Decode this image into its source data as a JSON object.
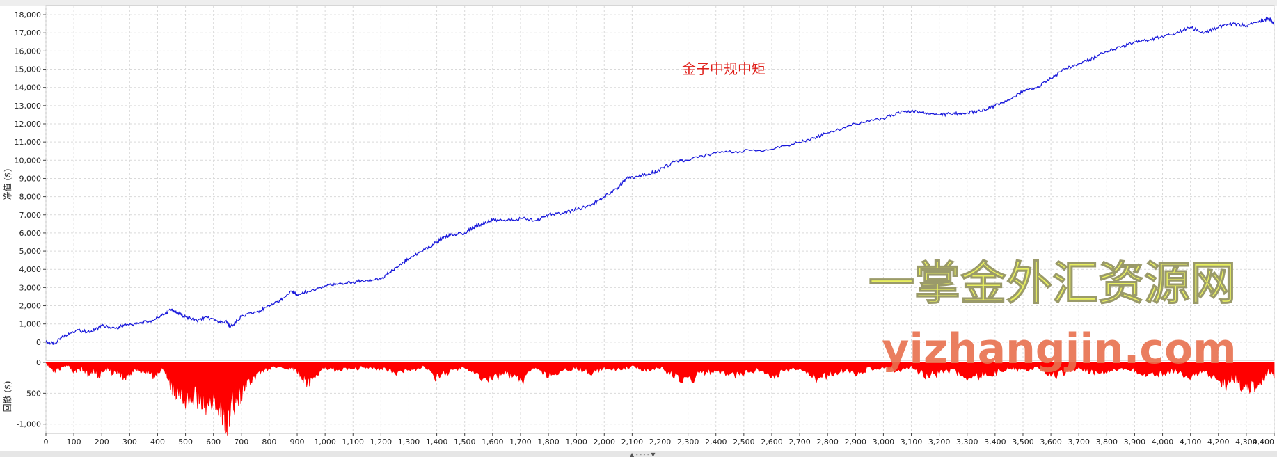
{
  "chart_data": [
    {
      "type": "line",
      "title": "金子中规中矩",
      "ylabel": "净值 ($)",
      "xlim": [
        0,
        4400
      ],
      "ylim": [
        -1000,
        18500
      ],
      "y_ticks": [
        0,
        1000,
        2000,
        3000,
        4000,
        5000,
        6000,
        7000,
        8000,
        9000,
        10000,
        11000,
        12000,
        13000,
        14000,
        15000,
        16000,
        17000,
        18000
      ],
      "y_tick_labels": [
        "0",
        "1,000",
        "2,000",
        "3,000",
        "4,000",
        "5,000",
        "6,000",
        "7,000",
        "8,000",
        "9,000",
        "10,000",
        "11,000",
        "12,000",
        "13,000",
        "14,000",
        "15,000",
        "16,000",
        "17,000",
        "18,000"
      ],
      "grid": true,
      "color": "#1a1adb",
      "series": [
        {
          "x": [
            0,
            30,
            70,
            110,
            160,
            200,
            250,
            280,
            330,
            380,
            420,
            450,
            470,
            500,
            540,
            580,
            620,
            650,
            660,
            700,
            760,
            800,
            840,
            880,
            900,
            940,
            1000,
            1050,
            1100,
            1150,
            1200,
            1230,
            1270,
            1300,
            1350,
            1400,
            1430,
            1450,
            1500,
            1530,
            1560,
            1600,
            1650,
            1700,
            1760,
            1800,
            1850,
            1900,
            1950,
            2000,
            2050,
            2080,
            2120,
            2170,
            2200,
            2250,
            2300,
            2400,
            2500,
            2600,
            2700,
            2750,
            2800,
            2900,
            3000,
            3050,
            3100,
            3150,
            3200,
            3250,
            3300,
            3350,
            3400,
            3450,
            3500,
            3550,
            3600,
            3650,
            3700,
            3750,
            3800,
            3850,
            3900,
            3950,
            4000,
            4050,
            4100,
            4150,
            4200,
            4250,
            4300,
            4350,
            4380,
            4400
          ],
          "y": [
            0,
            -100,
            400,
            650,
            550,
            900,
            750,
            950,
            1000,
            1200,
            1500,
            1800,
            1600,
            1400,
            1200,
            1350,
            1100,
            1100,
            800,
            1400,
            1700,
            1950,
            2300,
            2800,
            2600,
            2800,
            3100,
            3200,
            3300,
            3400,
            3450,
            3800,
            4300,
            4600,
            5000,
            5500,
            5800,
            5900,
            6000,
            6300,
            6500,
            6700,
            6700,
            6800,
            6700,
            7000,
            7100,
            7300,
            7500,
            8000,
            8500,
            9000,
            9100,
            9300,
            9500,
            9900,
            10000,
            10400,
            10500,
            10600,
            11000,
            11200,
            11500,
            12000,
            12300,
            12600,
            12700,
            12600,
            12500,
            12550,
            12600,
            12700,
            13000,
            13300,
            13800,
            14000,
            14500,
            15000,
            15300,
            15600,
            16000,
            16200,
            16500,
            16600,
            16800,
            17000,
            17300,
            17000,
            17300,
            17500,
            17400,
            17600,
            17800,
            17500
          ]
        }
      ]
    },
    {
      "type": "area",
      "ylabel": "回撤 ($)",
      "xlim": [
        0,
        4400
      ],
      "ylim": [
        -1150,
        0
      ],
      "y_ticks": [
        0,
        -500,
        -1000
      ],
      "y_tick_labels": [
        "0",
        "-500",
        "-1,000"
      ],
      "x_ticks": [
        0,
        100,
        200,
        300,
        400,
        500,
        600,
        700,
        800,
        900,
        1000,
        1100,
        1200,
        1300,
        1400,
        1500,
        1600,
        1700,
        1800,
        1900,
        2000,
        2100,
        2200,
        2300,
        2400,
        2500,
        2600,
        2700,
        2800,
        2900,
        3000,
        3100,
        3200,
        3300,
        3400,
        3500,
        3600,
        3700,
        3800,
        3900,
        4000,
        4100,
        4200,
        4300,
        4400
      ],
      "x_tick_labels": [
        "0",
        "100",
        "200",
        "300",
        "400",
        "500",
        "600",
        "700",
        "800",
        "900",
        "1,000",
        "1,100",
        "1,200",
        "1,300",
        "1,400",
        "1,500",
        "1,600",
        "1,700",
        "1,800",
        "1,900",
        "2,000",
        "2,100",
        "2,200",
        "2,300",
        "2,400",
        "2,500",
        "2,600",
        "2,700",
        "2,800",
        "2,900",
        "3,000",
        "3,100",
        "3,200",
        "3,300",
        "3,400",
        "3,500",
        "3,600",
        "3,700",
        "3,800",
        "3,900",
        "4,000",
        "4,100",
        "4,200",
        "4,300",
        "4,400"
      ],
      "grid": true,
      "color": "#ff0000",
      "series": [
        {
          "x": [
            0,
            10,
            30,
            60,
            80,
            100,
            130,
            150,
            170,
            190,
            220,
            240,
            260,
            280,
            300,
            320,
            340,
            360,
            380,
            400,
            420,
            440,
            450,
            470,
            500,
            540,
            570,
            600,
            620,
            640,
            650,
            660,
            680,
            700,
            720,
            750,
            780,
            800,
            840,
            880,
            900,
            920,
            940,
            960,
            1000,
            1050,
            1100,
            1150,
            1200,
            1250,
            1300,
            1350,
            1400,
            1450,
            1500,
            1550,
            1600,
            1650,
            1700,
            1750,
            1800,
            1850,
            1900,
            1950,
            2000,
            2050,
            2100,
            2150,
            2200,
            2250,
            2300,
            2350,
            2400,
            2450,
            2500,
            2550,
            2600,
            2650,
            2700,
            2750,
            2800,
            2850,
            2900,
            2950,
            3000,
            3050,
            3100,
            3150,
            3200,
            3250,
            3300,
            3350,
            3400,
            3450,
            3500,
            3550,
            3600,
            3650,
            3700,
            3750,
            3800,
            3850,
            3900,
            3950,
            4000,
            4050,
            4100,
            4150,
            4200,
            4230,
            4250,
            4270,
            4300,
            4330,
            4360,
            4380,
            4400
          ],
          "y": [
            0,
            -80,
            -150,
            -100,
            -50,
            -180,
            -120,
            -200,
            -150,
            -250,
            -100,
            -200,
            -150,
            -300,
            -220,
            -100,
            -200,
            -150,
            -250,
            -180,
            -100,
            -300,
            -450,
            -600,
            -700,
            -650,
            -750,
            -700,
            -850,
            -950,
            -1080,
            -900,
            -700,
            -600,
            -400,
            -250,
            -150,
            -100,
            -80,
            -120,
            -150,
            -300,
            -400,
            -250,
            -100,
            -150,
            -120,
            -80,
            -120,
            -200,
            -150,
            -80,
            -300,
            -150,
            -80,
            -250,
            -300,
            -200,
            -350,
            -100,
            -250,
            -150,
            -100,
            -200,
            -100,
            -120,
            -80,
            -150,
            -100,
            -250,
            -350,
            -200,
            -150,
            -250,
            -200,
            -150,
            -280,
            -150,
            -100,
            -300,
            -250,
            -150,
            -200,
            -120,
            -100,
            -150,
            -80,
            -250,
            -200,
            -150,
            -300,
            -250,
            -200,
            -100,
            -150,
            -100,
            -250,
            -200,
            -100,
            -200,
            -180,
            -100,
            -150,
            -250,
            -200,
            -150,
            -300,
            -150,
            -350,
            -450,
            -250,
            -380,
            -500,
            -450,
            -300,
            -150,
            -250
          ]
        }
      ]
    }
  ],
  "watermark": {
    "line1": "一掌金外汇资源网",
    "line2": "yizhangjin.com"
  }
}
